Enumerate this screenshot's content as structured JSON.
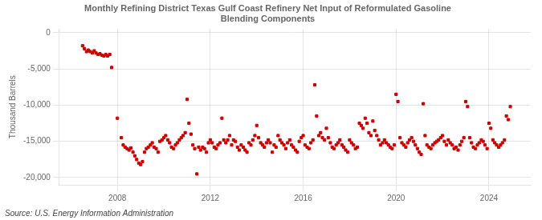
{
  "chart_data": {
    "type": "scatter",
    "title": "Monthly Refining District Texas Gulf Coast Refinery Net Input of Reformulated Gasoline\nBlending Components",
    "ylabel": "Thousand Barrels",
    "annotation": "Source: U.S. Energy Information Administration",
    "color": "#cc0000",
    "marker": "square",
    "grid": true,
    "xlim": [
      2005.5,
      2025.8
    ],
    "xticks": [
      2008,
      2012,
      2016,
      2020,
      2024
    ],
    "ylim": [
      -21000,
      500
    ],
    "yticks": [
      0,
      {
        "value": -5000,
        "label": "-5,000"
      },
      {
        "value": -10000,
        "label": "-10,000"
      },
      {
        "value": -15000,
        "label": "-15,000"
      },
      {
        "value": -20000,
        "label": "-20,000"
      }
    ],
    "x": [
      2006.5,
      2006.58,
      2006.67,
      2006.75,
      2006.83,
      2006.92,
      2007.0,
      2007.08,
      2007.17,
      2007.25,
      2007.33,
      2007.42,
      2007.5,
      2007.58,
      2007.67,
      2007.75,
      2008.0,
      2008.17,
      2008.25,
      2008.33,
      2008.42,
      2008.5,
      2008.58,
      2008.67,
      2008.75,
      2008.83,
      2008.92,
      2009.0,
      2009.08,
      2009.17,
      2009.25,
      2009.33,
      2009.42,
      2009.5,
      2009.58,
      2009.67,
      2009.75,
      2009.83,
      2009.92,
      2010.0,
      2010.08,
      2010.17,
      2010.25,
      2010.33,
      2010.42,
      2010.5,
      2010.58,
      2010.67,
      2010.75,
      2010.83,
      2010.92,
      2011.0,
      2011.08,
      2011.17,
      2011.25,
      2011.33,
      2011.42,
      2011.5,
      2011.58,
      2011.67,
      2011.75,
      2011.83,
      2011.92,
      2012.0,
      2012.08,
      2012.17,
      2012.25,
      2012.33,
      2012.42,
      2012.5,
      2012.58,
      2012.67,
      2012.75,
      2012.83,
      2012.92,
      2013.0,
      2013.08,
      2013.17,
      2013.25,
      2013.33,
      2013.42,
      2013.5,
      2013.58,
      2013.67,
      2013.75,
      2013.83,
      2013.92,
      2014.0,
      2014.08,
      2014.17,
      2014.25,
      2014.33,
      2014.42,
      2014.5,
      2014.58,
      2014.67,
      2014.75,
      2014.83,
      2014.92,
      2015.0,
      2015.08,
      2015.17,
      2015.25,
      2015.33,
      2015.42,
      2015.5,
      2015.58,
      2015.67,
      2015.75,
      2015.83,
      2015.92,
      2016.0,
      2016.08,
      2016.17,
      2016.25,
      2016.33,
      2016.42,
      2016.5,
      2016.58,
      2016.67,
      2016.75,
      2016.83,
      2016.92,
      2017.0,
      2017.08,
      2017.17,
      2017.25,
      2017.33,
      2017.42,
      2017.5,
      2017.58,
      2017.67,
      2017.75,
      2017.83,
      2017.92,
      2018.0,
      2018.08,
      2018.17,
      2018.25,
      2018.33,
      2018.42,
      2018.5,
      2018.58,
      2018.67,
      2018.75,
      2018.83,
      2018.92,
      2019.0,
      2019.08,
      2019.17,
      2019.25,
      2019.33,
      2019.42,
      2019.5,
      2019.58,
      2019.67,
      2019.75,
      2019.83,
      2019.92,
      2020.0,
      2020.08,
      2020.17,
      2020.25,
      2020.33,
      2020.42,
      2020.5,
      2020.58,
      2020.67,
      2020.75,
      2020.83,
      2020.92,
      2021.0,
      2021.08,
      2021.17,
      2021.25,
      2021.33,
      2021.42,
      2021.5,
      2021.58,
      2021.67,
      2021.75,
      2021.83,
      2021.92,
      2022.0,
      2022.08,
      2022.17,
      2022.25,
      2022.33,
      2022.42,
      2022.5,
      2022.58,
      2022.67,
      2022.75,
      2022.83,
      2022.92,
      2023.0,
      2023.08,
      2023.17,
      2023.25,
      2023.33,
      2023.42,
      2023.5,
      2023.58,
      2023.67,
      2023.75,
      2023.83,
      2023.92,
      2024.0,
      2024.08,
      2024.17,
      2024.25,
      2024.33,
      2024.42,
      2024.5,
      2024.58,
      2024.67,
      2024.75,
      2024.83,
      2024.92
    ],
    "values": [
      -1800,
      -2200,
      -2600,
      -2400,
      -2600,
      -2800,
      -2500,
      -2800,
      -3000,
      -2900,
      -3100,
      -3200,
      -3000,
      -3200,
      -3000,
      -4800,
      -11800,
      -14500,
      -15500,
      -15800,
      -16000,
      -16200,
      -15900,
      -16500,
      -17000,
      -17500,
      -18000,
      -18200,
      -17800,
      -16500,
      -16000,
      -15800,
      -15500,
      -15200,
      -15800,
      -16000,
      -16500,
      -15000,
      -14800,
      -14500,
      -14200,
      -14800,
      -15200,
      -15800,
      -16000,
      -15500,
      -15200,
      -14800,
      -14500,
      -14200,
      -13800,
      -9200,
      -12500,
      -14000,
      -15500,
      -16000,
      -19500,
      -15800,
      -16200,
      -15800,
      -16000,
      -16500,
      -15200,
      -14800,
      -15200,
      -15800,
      -16000,
      -15500,
      -15200,
      -11800,
      -14800,
      -15200,
      -14800,
      -14200,
      -15500,
      -14800,
      -15000,
      -15800,
      -16200,
      -15500,
      -15800,
      -16200,
      -16500,
      -15200,
      -15500,
      -14800,
      -14200,
      -12800,
      -14500,
      -15200,
      -15500,
      -15800,
      -15200,
      -14800,
      -15200,
      -16500,
      -15500,
      -15800,
      -14200,
      -14800,
      -15200,
      -15500,
      -16000,
      -15200,
      -14800,
      -15500,
      -15800,
      -16200,
      -16500,
      -15000,
      -14500,
      -14200,
      -15500,
      -15800,
      -16000,
      -15200,
      -14800,
      -7200,
      -11500,
      -14200,
      -13800,
      -14500,
      -14800,
      -13200,
      -14500,
      -15200,
      -15800,
      -16000,
      -15500,
      -15200,
      -14800,
      -15500,
      -15800,
      -16200,
      -16500,
      -14800,
      -15200,
      -15500,
      -16000,
      -15800,
      -12500,
      -12800,
      -13200,
      -11800,
      -12500,
      -13800,
      -14200,
      -12200,
      -13500,
      -14200,
      -14800,
      -15500,
      -15200,
      -14800,
      -15200,
      -15500,
      -15800,
      -16000,
      -15500,
      -8500,
      -9500,
      -14500,
      -15200,
      -15500,
      -15800,
      -15200,
      -14800,
      -14500,
      -15000,
      -15500,
      -16000,
      -16500,
      -16800,
      -9800,
      -14200,
      -15500,
      -15800,
      -16000,
      -15500,
      -15200,
      -15000,
      -14800,
      -14500,
      -14200,
      -15000,
      -15500,
      -14800,
      -15200,
      -15500,
      -16000,
      -15800,
      -16200,
      -15500,
      -15000,
      -14500,
      -9500,
      -10200,
      -14500,
      -15200,
      -15800,
      -16000,
      -15500,
      -15200,
      -14800,
      -15000,
      -15500,
      -16000,
      -12500,
      -13200,
      -14800,
      -15200,
      -15500,
      -15800,
      -15500,
      -15200,
      -14800,
      -11500,
      -12000,
      -10200
    ]
  }
}
